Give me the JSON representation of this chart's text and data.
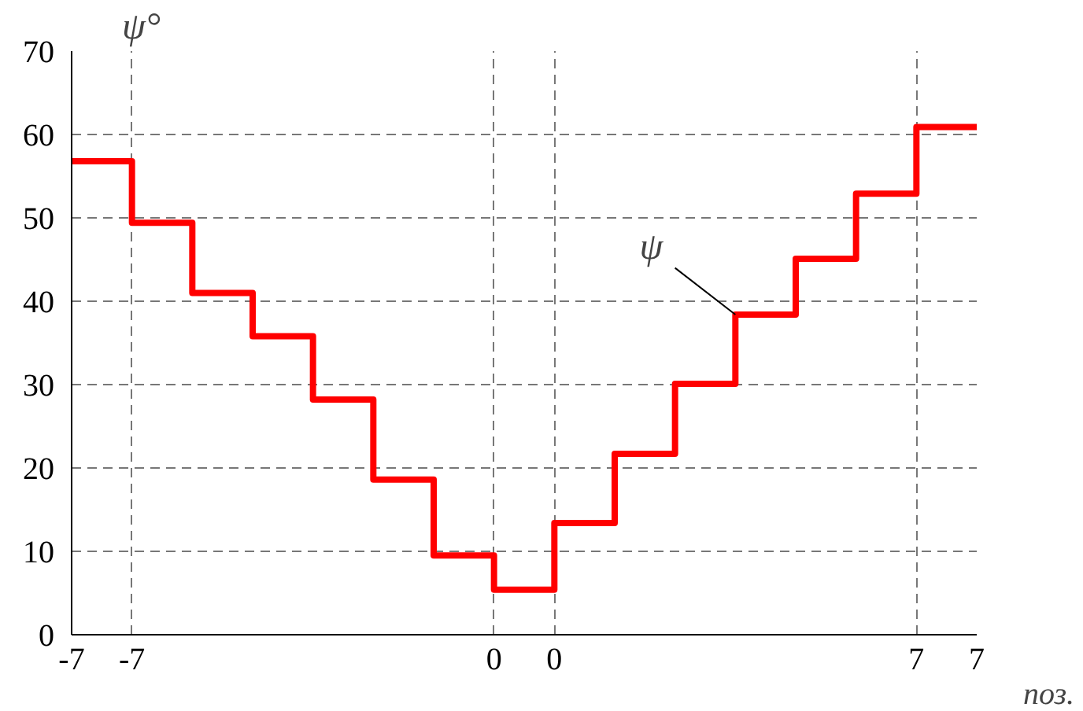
{
  "chart_data": {
    "type": "step",
    "ylabel": "ψ°",
    "xlabel": "поз.",
    "categories": [
      "-7",
      "-7",
      null,
      null,
      null,
      null,
      null,
      "0",
      "0",
      null,
      null,
      null,
      null,
      null,
      "7",
      "7"
    ],
    "series": [
      {
        "name": "ψ",
        "color": "#ff0000",
        "values": [
          56.8,
          49.4,
          41.0,
          35.8,
          28.2,
          18.6,
          9.5,
          5.4,
          13.4,
          21.7,
          30.1,
          38.4,
          45.1,
          52.9,
          60.9,
          60.9
        ]
      }
    ],
    "ylim": [
      0,
      70
    ],
    "yticks": [
      0,
      10,
      20,
      30,
      40,
      50,
      60,
      70
    ],
    "grid": true
  }
}
